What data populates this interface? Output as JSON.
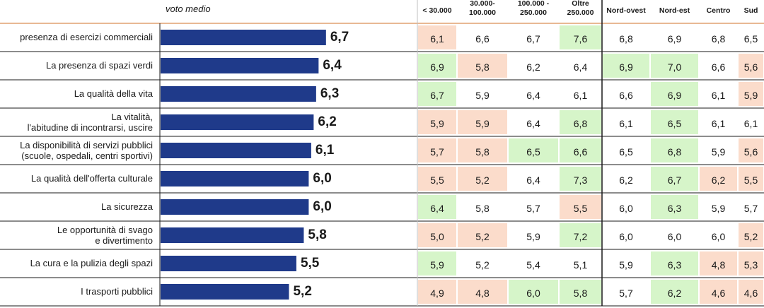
{
  "chart_data": {
    "type": "bar",
    "title": "voto medio",
    "categories": [
      [
        "presenza di esercizi commerciali"
      ],
      [
        "La presenza di spazi verdi"
      ],
      [
        "La qualità della vita"
      ],
      [
        "La vitalità,",
        "l'abitudine di incontrarsi, uscire"
      ],
      [
        "La disponibilità di servizi pubblici",
        "(scuole, ospedali, centri sportivi)"
      ],
      [
        "La qualità dell'offerta culturale"
      ],
      [
        "La sicurezza"
      ],
      [
        "Le opportunità di svago",
        "e divertimento"
      ],
      [
        "La cura e la pulizia degli spazi"
      ],
      [
        "I trasporti pubblici"
      ]
    ],
    "values": [
      6.7,
      6.4,
      6.3,
      6.2,
      6.1,
      6.0,
      6.0,
      5.8,
      5.5,
      5.2
    ],
    "value_labels": [
      "6,7",
      "6,4",
      "6,3",
      "6,2",
      "6,1",
      "6,0",
      "6,0",
      "5,8",
      "5,5",
      "5,2"
    ],
    "bar_color": "#1f3a8a",
    "table": {
      "columns": [
        [
          "< 30.000"
        ],
        [
          "30.000-",
          "100.000"
        ],
        [
          "100.000 -",
          "250.000"
        ],
        [
          "Oltre",
          "250.000"
        ],
        [
          "Nord-ovest"
        ],
        [
          "Nord-est"
        ],
        [
          "Centro"
        ],
        [
          "Sud"
        ]
      ],
      "rows": [
        [
          "6,1",
          "6,6",
          "6,7",
          "7,6",
          "6,8",
          "6,9",
          "6,8",
          "6,5"
        ],
        [
          "6,9",
          "5,8",
          "6,2",
          "6,4",
          "6,9",
          "7,0",
          "6,6",
          "5,6"
        ],
        [
          "6,7",
          "5,9",
          "6,4",
          "6,1",
          "6,6",
          "6,9",
          "6,1",
          "5,9"
        ],
        [
          "5,9",
          "5,9",
          "6,4",
          "6,8",
          "6,1",
          "6,5",
          "6,1",
          "6,1"
        ],
        [
          "5,7",
          "5,8",
          "6,5",
          "6,6",
          "6,5",
          "6,8",
          "5,9",
          "5,6"
        ],
        [
          "5,5",
          "5,2",
          "6,4",
          "7,3",
          "6,2",
          "6,7",
          "6,2",
          "5,5"
        ],
        [
          "6,4",
          "5,8",
          "5,7",
          "5,5",
          "6,0",
          "6,3",
          "5,9",
          "5,7"
        ],
        [
          "5,0",
          "5,2",
          "5,9",
          "7,2",
          "6,0",
          "6,0",
          "6,0",
          "5,2"
        ],
        [
          "5,9",
          "5,2",
          "5,4",
          "5,1",
          "5,9",
          "6,3",
          "4,8",
          "5,3"
        ],
        [
          "4,9",
          "4,8",
          "6,0",
          "5,8",
          "5,7",
          "6,2",
          "4,6",
          "4,6"
        ]
      ],
      "highlight": [
        [
          "o",
          "",
          "",
          "g",
          "",
          "",
          "",
          ""
        ],
        [
          "g",
          "o",
          "",
          "",
          "g",
          "g",
          "",
          "o"
        ],
        [
          "g",
          "",
          "",
          "",
          "",
          "g",
          "",
          "o"
        ],
        [
          "o",
          "o",
          "",
          "g",
          "",
          "g",
          "",
          ""
        ],
        [
          "o",
          "o",
          "g",
          "g",
          "",
          "g",
          "",
          "o"
        ],
        [
          "o",
          "o",
          "",
          "g",
          "",
          "g",
          "o",
          "o"
        ],
        [
          "g",
          "",
          "",
          "o",
          "",
          "g",
          "",
          ""
        ],
        [
          "o",
          "o",
          "",
          "g",
          "",
          "",
          "",
          "o"
        ],
        [
          "g",
          "",
          "",
          "",
          "",
          "g",
          "o",
          "o"
        ],
        [
          "o",
          "o",
          "g",
          "g",
          "",
          "g",
          "o",
          "o"
        ]
      ],
      "highlight_colors": {
        "g": "#d6f5c9",
        "o": "#fbdccb"
      }
    }
  }
}
